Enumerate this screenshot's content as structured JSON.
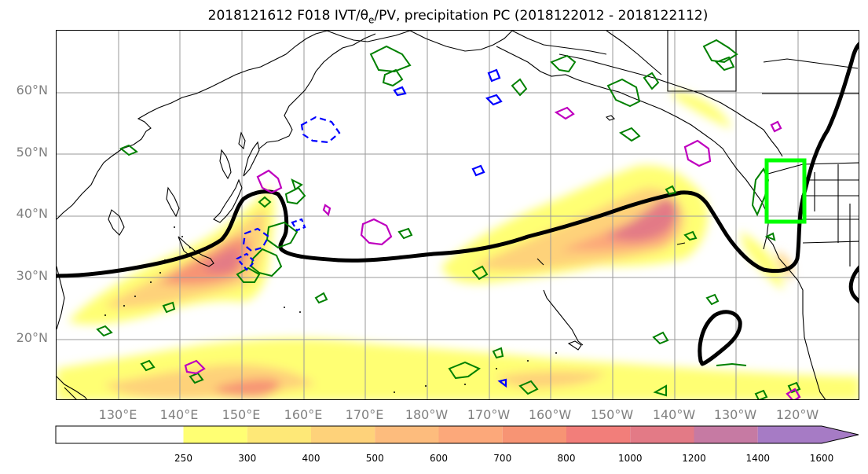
{
  "title": {
    "prefix": "2018121612 F018 IVT/θ",
    "subscript": "e",
    "suffix": "/PV, precipitation PC (2018122012 - 2018122112)"
  },
  "map": {
    "projection": "plate carree, Pacific-centered",
    "lon_range": [
      120,
      250
    ],
    "lat_range": [
      10,
      70
    ],
    "grid": true,
    "lat_labels": [
      "20°N",
      "30°N",
      "40°N",
      "50°N",
      "60°N"
    ],
    "lon_labels": [
      "130°E",
      "140°E",
      "150°E",
      "160°E",
      "170°E",
      "180°W",
      "170°W",
      "160°W",
      "150°W",
      "140°W",
      "130°W",
      "120°W"
    ],
    "colors": {
      "coastline": "#000000",
      "grid": "#9a9a9a",
      "ivt_contour": "#000000",
      "box": "#00ff00",
      "precip_green": "#008000",
      "precip_blue": "#0000ff",
      "precip_magenta": "#bf00bf"
    }
  },
  "colorbar": {
    "extend": "max",
    "ticks": [
      "250",
      "300",
      "400",
      "500",
      "600",
      "700",
      "800",
      "1000",
      "1200",
      "1400",
      "1600"
    ],
    "colors": [
      "#ffffff",
      "#ffff73",
      "#fee877",
      "#fed27a",
      "#fdbc7d",
      "#fca87a",
      "#f79474",
      "#f27e7a",
      "#e37a86",
      "#c67aa3",
      "#a67bc5"
    ]
  }
}
